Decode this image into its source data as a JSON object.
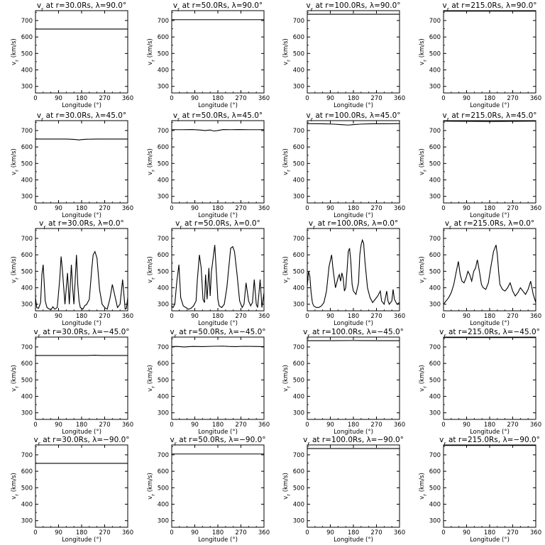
{
  "figure": {
    "xlabel": "Longitude (°)",
    "ylabel": "v<sub>r</sub> (km/s)",
    "xticks": [
      0,
      90,
      180,
      270,
      360
    ],
    "yticks": [
      300,
      400,
      500,
      600,
      700
    ],
    "xlim": [
      0,
      360
    ],
    "ylim": [
      260,
      760
    ],
    "line_color": "#000000"
  },
  "chart_data": [
    {
      "type": "line",
      "title": "v<sub>r</sub> at r=30.0Rs, λ=90.0°",
      "x": [
        0,
        360
      ],
      "y": [
        648,
        648
      ]
    },
    {
      "type": "line",
      "title": "v<sub>r</sub> at r=50.0Rs, λ=90.0°",
      "x": [
        0,
        360
      ],
      "y": [
        705,
        705
      ]
    },
    {
      "type": "line",
      "title": "v<sub>r</sub> at r=100.0Rs, λ=90.0°",
      "x": [
        0,
        360
      ],
      "y": [
        738,
        738
      ]
    },
    {
      "type": "line",
      "title": "v<sub>r</sub> at r=215.0Rs, λ=90.0°",
      "x": [
        0,
        360
      ],
      "y": [
        757,
        757
      ]
    },
    {
      "type": "line",
      "title": "v<sub>r</sub> at r=30.0Rs, λ=45.0°",
      "x": [
        0,
        60,
        120,
        150,
        170,
        180,
        200,
        240,
        300,
        360
      ],
      "y": [
        648,
        648,
        648,
        646,
        643,
        645,
        647,
        648,
        648,
        648
      ]
    },
    {
      "type": "line",
      "title": "v<sub>r</sub> at r=50.0Rs, λ=45.0°",
      "x": [
        0,
        40,
        80,
        110,
        130,
        150,
        165,
        180,
        200,
        230,
        260,
        300,
        360
      ],
      "y": [
        705,
        705,
        706,
        703,
        700,
        703,
        697,
        700,
        706,
        705,
        706,
        705,
        705
      ]
    },
    {
      "type": "line",
      "title": "v<sub>r</sub> at r=100.0Rs, λ=45.0°",
      "x": [
        0,
        60,
        100,
        130,
        160,
        180,
        210,
        250,
        300,
        360
      ],
      "y": [
        742,
        741,
        739,
        736,
        733,
        736,
        739,
        741,
        741,
        742
      ]
    },
    {
      "type": "line",
      "title": "v<sub>r</sub> at r=215.0Rs, λ=45.0°",
      "x": [
        0,
        90,
        180,
        270,
        360
      ],
      "y": [
        757,
        756,
        755,
        756,
        757
      ]
    },
    {
      "type": "line",
      "title": "v<sub>r</sub> at r=30.0Rs, λ=0.0°",
      "x": [
        0,
        5,
        12,
        20,
        25,
        30,
        38,
        45,
        55,
        62,
        68,
        75,
        85,
        95,
        100,
        105,
        115,
        125,
        132,
        140,
        145,
        150,
        160,
        165,
        170,
        175,
        185,
        192,
        200,
        210,
        220,
        225,
        232,
        240,
        250,
        260,
        270,
        280,
        290,
        300,
        310,
        320,
        330,
        340,
        345,
        350,
        355,
        360
      ],
      "y": [
        340,
        280,
        275,
        310,
        480,
        540,
        320,
        280,
        270,
        270,
        285,
        270,
        280,
        460,
        590,
        510,
        300,
        490,
        300,
        540,
        400,
        300,
        600,
        420,
        320,
        280,
        270,
        290,
        300,
        330,
        520,
        600,
        620,
        580,
        390,
        300,
        280,
        270,
        330,
        420,
        350,
        280,
        300,
        450,
        360,
        270,
        275,
        340
      ]
    },
    {
      "type": "line",
      "title": "v<sub>r</sub> at r=50.0Rs, λ=0.0°",
      "x": [
        0,
        5,
        12,
        20,
        28,
        35,
        45,
        55,
        65,
        75,
        85,
        95,
        100,
        108,
        115,
        122,
        128,
        132,
        138,
        145,
        150,
        155,
        160,
        168,
        175,
        180,
        185,
        195,
        205,
        215,
        225,
        230,
        238,
        245,
        255,
        265,
        275,
        282,
        290,
        300,
        308,
        315,
        322,
        330,
        335,
        340,
        345,
        352,
        360
      ],
      "y": [
        290,
        280,
        300,
        440,
        540,
        340,
        290,
        280,
        270,
        275,
        290,
        320,
        450,
        600,
        520,
        330,
        310,
        480,
        330,
        520,
        350,
        500,
        560,
        660,
        470,
        330,
        290,
        280,
        300,
        400,
        560,
        640,
        650,
        620,
        480,
        320,
        280,
        300,
        430,
        320,
        290,
        310,
        450,
        300,
        280,
        360,
        450,
        280,
        370
      ]
    },
    {
      "type": "line",
      "title": "v<sub>r</sub> at r=100.0Rs, λ=0.0°",
      "x": [
        0,
        5,
        10,
        15,
        20,
        25,
        35,
        45,
        55,
        65,
        75,
        85,
        95,
        100,
        110,
        115,
        120,
        125,
        130,
        135,
        140,
        145,
        150,
        155,
        160,
        165,
        170,
        175,
        180,
        190,
        200,
        205,
        210,
        215,
        220,
        225,
        235,
        245,
        255,
        265,
        275,
        285,
        290,
        300,
        305,
        310,
        315,
        320,
        330,
        335,
        340,
        350,
        360
      ],
      "y": [
        410,
        500,
        470,
        370,
        310,
        290,
        280,
        280,
        290,
        310,
        380,
        530,
        600,
        520,
        400,
        430,
        460,
        480,
        440,
        490,
        460,
        380,
        400,
        500,
        620,
        640,
        560,
        420,
        380,
        360,
        430,
        600,
        660,
        690,
        670,
        560,
        400,
        340,
        310,
        330,
        350,
        380,
        320,
        300,
        340,
        380,
        320,
        300,
        320,
        390,
        330,
        300,
        310
      ]
    },
    {
      "type": "line",
      "title": "v<sub>r</sub> at r=215.0Rs, λ=0.0°",
      "x": [
        0,
        10,
        20,
        30,
        40,
        50,
        58,
        65,
        72,
        80,
        88,
        95,
        102,
        110,
        118,
        125,
        132,
        140,
        148,
        155,
        165,
        175,
        185,
        195,
        205,
        210,
        215,
        220,
        230,
        240,
        250,
        260,
        270,
        280,
        290,
        300,
        310,
        320,
        330,
        340,
        350,
        360
      ],
      "y": [
        300,
        320,
        340,
        370,
        420,
        500,
        560,
        480,
        440,
        430,
        460,
        500,
        480,
        440,
        500,
        520,
        570,
        500,
        420,
        400,
        390,
        430,
        530,
        620,
        660,
        600,
        500,
        420,
        390,
        380,
        400,
        430,
        380,
        350,
        370,
        400,
        380,
        360,
        390,
        440,
        360,
        310
      ]
    },
    {
      "type": "line",
      "title": "v<sub>r</sub> at r=30.0Rs, λ=−45.0°",
      "x": [
        0,
        120,
        200,
        230,
        260,
        360
      ],
      "y": [
        648,
        648,
        648,
        650,
        648,
        648
      ]
    },
    {
      "type": "line",
      "title": "v<sub>r</sub> at r=50.0Rs, λ=−45.0°",
      "x": [
        0,
        20,
        50,
        80,
        120,
        160,
        200,
        220,
        250,
        280,
        320,
        360
      ],
      "y": [
        702,
        703,
        700,
        703,
        702,
        704,
        705,
        703,
        702,
        704,
        703,
        702
      ]
    },
    {
      "type": "line",
      "title": "v<sub>r</sub> at r=100.0Rs, λ=−45.0°",
      "x": [
        0,
        90,
        180,
        270,
        360
      ],
      "y": [
        738,
        738,
        739,
        738,
        738
      ]
    },
    {
      "type": "line",
      "title": "v<sub>r</sub> at r=215.0Rs, λ=−45.0°",
      "x": [
        0,
        90,
        180,
        270,
        360
      ],
      "y": [
        757,
        757,
        757,
        757,
        757
      ]
    },
    {
      "type": "line",
      "title": "v<sub>r</sub> at r=30.0Rs, λ=−90.0°",
      "x": [
        0,
        360
      ],
      "y": [
        648,
        648
      ]
    },
    {
      "type": "line",
      "title": "v<sub>r</sub> at r=50.0Rs, λ=−90.0°",
      "x": [
        0,
        360
      ],
      "y": [
        705,
        705
      ]
    },
    {
      "type": "line",
      "title": "v<sub>r</sub> at r=100.0Rs, λ=−90.0°",
      "x": [
        0,
        360
      ],
      "y": [
        738,
        738
      ]
    },
    {
      "type": "line",
      "title": "v<sub>r</sub> at r=215.0Rs, λ=−90.0°",
      "x": [
        0,
        360
      ],
      "y": [
        757,
        757
      ]
    }
  ]
}
